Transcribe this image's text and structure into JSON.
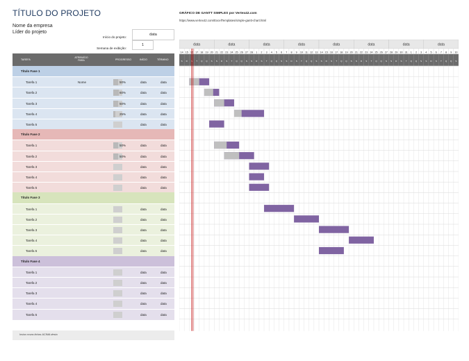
{
  "header": {
    "title": "TÍTULO DO PROJETO",
    "company": "Nome da empresa",
    "leader": "Líder do projeto",
    "start_label": "Início do projeto:",
    "start_value": "data",
    "week_label": "Semana de exibição:",
    "week_value": "1"
  },
  "gantt": {
    "title": "GRÁFICO DE GANTT SIMPLES por Vertex42.com",
    "url": "https://www.vertex42.com/ExcelTemplates/simple-gantt-chart.html",
    "week_labels": [
      "data",
      "data",
      "data",
      "data",
      "data",
      "data",
      "data",
      "data"
    ],
    "days": [
      "14",
      "15",
      "16",
      "17",
      "18",
      "19",
      "20",
      "21",
      "22",
      "23",
      "24",
      "25",
      "26",
      "27",
      "28",
      "1",
      "2",
      "3",
      "4",
      "5",
      "6",
      "7",
      "8",
      "9",
      "10",
      "11",
      "12",
      "13",
      "14",
      "15",
      "16",
      "17",
      "18",
      "19",
      "20",
      "21",
      "22",
      "23",
      "24",
      "25",
      "26",
      "27",
      "28",
      "29",
      "30",
      "31",
      "1",
      "2",
      "3",
      "4",
      "5",
      "6",
      "7",
      "8",
      "9",
      "10"
    ],
    "day_letters": [
      "S",
      "D",
      "S",
      "T",
      "Q",
      "Q",
      "S",
      "S",
      "D",
      "S",
      "T",
      "Q",
      "Q",
      "S",
      "S",
      "D",
      "S",
      "T",
      "Q",
      "Q",
      "S",
      "S",
      "D",
      "S",
      "T",
      "Q",
      "Q",
      "S",
      "S",
      "D",
      "S",
      "T",
      "Q",
      "Q",
      "S",
      "S",
      "D",
      "S",
      "T",
      "Q",
      "Q",
      "S",
      "S",
      "D",
      "S",
      "T",
      "Q",
      "Q",
      "S",
      "S",
      "D",
      "S",
      "T",
      "Q",
      "Q",
      "S"
    ],
    "bar_color": "#8064a2",
    "progress_color": "#bfbfbf",
    "today_line_color": "#c00000"
  },
  "table": {
    "headers": {
      "task": "TAREFA",
      "assigned": "ATRIBUÍDO PARA",
      "progress": "PROGRESSO",
      "start": "INÍCIO",
      "end": "TÉRMINO"
    }
  },
  "phases": [
    {
      "name": "Título Fase 1",
      "color": "#bdd0e6",
      "row_color": "#dbe5f1",
      "tasks": [
        {
          "name": "Tarefa 1",
          "assigned": "Nome",
          "progress": "50%",
          "pct": 0.5,
          "start": "data",
          "end": "data",
          "bar": {
            "start_day": 2,
            "days": 4
          }
        },
        {
          "name": "Tarefa 2",
          "assigned": "",
          "progress": "60%",
          "pct": 0.6,
          "start": "data",
          "end": "data",
          "bar": {
            "start_day": 5,
            "days": 3
          }
        },
        {
          "name": "Tarefa 3",
          "assigned": "",
          "progress": "50%",
          "pct": 0.5,
          "start": "data",
          "end": "data",
          "bar": {
            "start_day": 7,
            "days": 4
          }
        },
        {
          "name": "Tarefa 4",
          "assigned": "",
          "progress": "25%",
          "pct": 0.25,
          "start": "data",
          "end": "data",
          "bar": {
            "start_day": 11,
            "days": 6
          }
        },
        {
          "name": "Tarefa 5",
          "assigned": "",
          "progress": "",
          "pct": 0,
          "start": "data",
          "end": "data",
          "bar": {
            "start_day": 6,
            "days": 3
          }
        }
      ]
    },
    {
      "name": "Título Fase 2",
      "color": "#e6b8b7",
      "row_color": "#f2dcdb",
      "tasks": [
        {
          "name": "Tarefa 1",
          "assigned": "",
          "progress": "50%",
          "pct": 0.5,
          "start": "data",
          "end": "data",
          "bar": {
            "start_day": 7,
            "days": 5
          }
        },
        {
          "name": "Tarefa 2",
          "assigned": "",
          "progress": "50%",
          "pct": 0.5,
          "start": "data",
          "end": "data",
          "bar": {
            "start_day": 9,
            "days": 6
          }
        },
        {
          "name": "Tarefa 3",
          "assigned": "",
          "progress": "",
          "pct": 0,
          "start": "data",
          "end": "data",
          "bar": {
            "start_day": 14,
            "days": 4
          }
        },
        {
          "name": "Tarefa 4",
          "assigned": "",
          "progress": "",
          "pct": 0,
          "start": "data",
          "end": "data",
          "bar": {
            "start_day": 14,
            "days": 3
          }
        },
        {
          "name": "Tarefa 5",
          "assigned": "",
          "progress": "",
          "pct": 0,
          "start": "data",
          "end": "data",
          "bar": {
            "start_day": 14,
            "days": 4
          }
        }
      ]
    },
    {
      "name": "Título Fase 3",
      "color": "#d7e4bc",
      "row_color": "#ebf1de",
      "tasks": [
        {
          "name": "Tarefa 1",
          "assigned": "",
          "progress": "",
          "pct": 0,
          "start": "data",
          "end": "data",
          "bar": {
            "start_day": 17,
            "days": 6
          }
        },
        {
          "name": "Tarefa 2",
          "assigned": "",
          "progress": "",
          "pct": 0,
          "start": "data",
          "end": "data",
          "bar": {
            "start_day": 23,
            "days": 5
          }
        },
        {
          "name": "Tarefa 3",
          "assigned": "",
          "progress": "",
          "pct": 0,
          "start": "data",
          "end": "data",
          "bar": {
            "start_day": 28,
            "days": 6
          }
        },
        {
          "name": "Tarefa 4",
          "assigned": "",
          "progress": "",
          "pct": 0,
          "start": "data",
          "end": "data",
          "bar": {
            "start_day": 34,
            "days": 5
          }
        },
        {
          "name": "Tarefa 5",
          "assigned": "",
          "progress": "",
          "pct": 0,
          "start": "data",
          "end": "data",
          "bar": {
            "start_day": 28,
            "days": 5
          }
        }
      ]
    },
    {
      "name": "Título Fase 4",
      "color": "#ccc0da",
      "row_color": "#e4dfec",
      "tasks": [
        {
          "name": "Tarefa 1",
          "assigned": "",
          "progress": "",
          "pct": 0,
          "start": "data",
          "end": "data",
          "bar": null
        },
        {
          "name": "Tarefa 2",
          "assigned": "",
          "progress": "",
          "pct": 0,
          "start": "data",
          "end": "data",
          "bar": null
        },
        {
          "name": "Tarefa 3",
          "assigned": "",
          "progress": "",
          "pct": 0,
          "start": "data",
          "end": "data",
          "bar": null
        },
        {
          "name": "Tarefa 4",
          "assigned": "",
          "progress": "",
          "pct": 0,
          "start": "data",
          "end": "data",
          "bar": null
        },
        {
          "name": "Tarefa 5",
          "assigned": "",
          "progress": "",
          "pct": 0,
          "start": "data",
          "end": "data",
          "bar": null
        }
      ]
    }
  ],
  "footer": "Insira novas linhas ACIMA desta"
}
